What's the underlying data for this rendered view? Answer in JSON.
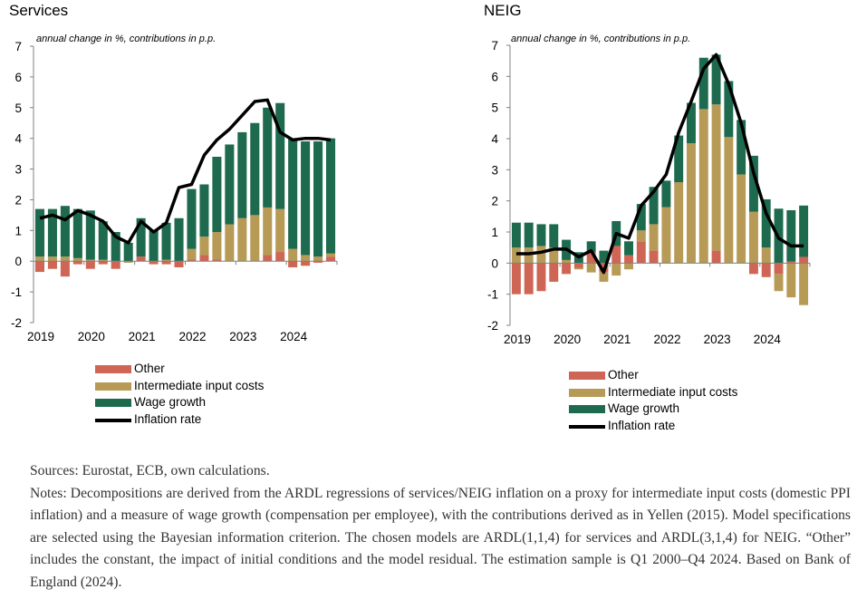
{
  "colors": {
    "other": "#cf6655",
    "intermediate": "#b69a56",
    "wage": "#1d6a4f",
    "inflation": "#000000"
  },
  "legend": {
    "other": "Other",
    "intermediate": "Intermediate input costs",
    "wage": "Wage growth",
    "inflation": "Inflation rate"
  },
  "chart_data": [
    {
      "type": "bar",
      "title": "Services",
      "subtitle": "annual change in %, contributions in p.p.",
      "stacked": true,
      "ylim": [
        -2,
        7
      ],
      "yticks": [
        -2,
        -1,
        0,
        1,
        2,
        3,
        4,
        5,
        6,
        7
      ],
      "xticks": [
        "2019",
        "2020",
        "2021",
        "2022",
        "2023",
        "2024"
      ],
      "categories": [
        "2019Q1",
        "2019Q2",
        "2019Q3",
        "2019Q4",
        "2020Q1",
        "2020Q2",
        "2020Q3",
        "2020Q4",
        "2021Q1",
        "2021Q2",
        "2021Q3",
        "2021Q4",
        "2022Q1",
        "2022Q2",
        "2022Q3",
        "2022Q4",
        "2023Q1",
        "2023Q2",
        "2023Q3",
        "2023Q4",
        "2024Q1",
        "2024Q2",
        "2024Q3",
        "2024Q4"
      ],
      "series": [
        {
          "name": "Other",
          "values": [
            -0.35,
            -0.25,
            -0.5,
            -0.1,
            -0.25,
            -0.1,
            -0.25,
            0.0,
            0.15,
            -0.1,
            -0.1,
            -0.2,
            0.05,
            0.2,
            0.05,
            0.0,
            0.0,
            0.0,
            0.2,
            0.3,
            -0.2,
            -0.15,
            -0.05,
            0.15
          ]
        },
        {
          "name": "Intermediate input costs",
          "values": [
            0.15,
            0.15,
            0.15,
            0.1,
            0.05,
            0.05,
            0.0,
            -0.05,
            0.0,
            0.0,
            0.05,
            0.0,
            0.35,
            0.6,
            0.9,
            1.2,
            1.4,
            1.5,
            1.55,
            1.4,
            0.4,
            0.2,
            0.15,
            0.1
          ]
        },
        {
          "name": "Wage growth",
          "values": [
            1.55,
            1.55,
            1.65,
            1.6,
            1.6,
            1.25,
            0.95,
            0.6,
            1.25,
            1.0,
            1.2,
            1.4,
            1.95,
            1.7,
            2.45,
            2.6,
            2.8,
            3.0,
            3.25,
            3.45,
            3.6,
            3.7,
            3.75,
            3.75
          ]
        },
        {
          "name": "Inflation rate",
          "type": "line",
          "values": [
            1.4,
            1.5,
            1.35,
            1.65,
            1.5,
            1.3,
            0.8,
            0.6,
            1.3,
            0.95,
            1.25,
            2.4,
            2.5,
            3.45,
            3.95,
            4.3,
            4.75,
            5.2,
            5.25,
            4.2,
            3.95,
            4.0,
            4.0,
            3.95
          ]
        }
      ]
    },
    {
      "type": "bar",
      "title": "NEIG",
      "subtitle": "annual change in %, contributions in p.p.",
      "stacked": true,
      "ylim": [
        -2,
        7
      ],
      "yticks": [
        -2,
        -1,
        0,
        1,
        2,
        3,
        4,
        5,
        6,
        7
      ],
      "xticks": [
        "2019",
        "2020",
        "2021",
        "2022",
        "2023",
        "2024"
      ],
      "categories": [
        "2019Q1",
        "2019Q2",
        "2019Q3",
        "2019Q4",
        "2020Q1",
        "2020Q2",
        "2020Q3",
        "2020Q4",
        "2021Q1",
        "2021Q2",
        "2021Q3",
        "2021Q4",
        "2022Q1",
        "2022Q2",
        "2022Q3",
        "2022Q4",
        "2023Q1",
        "2023Q2",
        "2023Q3",
        "2023Q4",
        "2024Q1",
        "2024Q2",
        "2024Q3",
        "2024Q4"
      ],
      "series": [
        {
          "name": "Other",
          "values": [
            -1.0,
            -1.0,
            -0.9,
            -0.6,
            -0.35,
            -0.15,
            0.35,
            -0.3,
            0.55,
            0.25,
            0.7,
            0.4,
            0.0,
            0.0,
            0.0,
            0.0,
            0.4,
            0.0,
            0.0,
            -0.35,
            -0.45,
            -0.35,
            0.05,
            0.2
          ]
        },
        {
          "name": "Intermediate input costs",
          "values": [
            0.5,
            0.5,
            0.55,
            0.5,
            0.1,
            -0.05,
            -0.3,
            -0.3,
            -0.4,
            -0.2,
            0.35,
            0.85,
            1.8,
            2.6,
            3.85,
            4.95,
            4.7,
            4.05,
            2.85,
            1.65,
            0.5,
            -0.55,
            -1.1,
            -1.35
          ]
        },
        {
          "name": "Wage growth",
          "values": [
            0.8,
            0.8,
            0.7,
            0.75,
            0.65,
            0.35,
            0.35,
            0.4,
            0.8,
            0.45,
            0.85,
            1.2,
            0.85,
            1.5,
            1.3,
            1.65,
            1.6,
            1.8,
            1.75,
            1.8,
            1.55,
            1.75,
            1.65,
            1.65
          ]
        },
        {
          "name": "Inflation rate",
          "type": "line",
          "values": [
            0.3,
            0.3,
            0.35,
            0.45,
            0.45,
            0.2,
            0.4,
            -0.3,
            0.95,
            0.8,
            1.85,
            2.3,
            2.85,
            4.2,
            5.2,
            6.25,
            6.7,
            5.75,
            4.5,
            2.9,
            1.6,
            0.8,
            0.55,
            0.55
          ]
        }
      ]
    }
  ],
  "notes": {
    "sources": "Sources: Eurostat, ECB, own calculations.",
    "text": "Notes: Decompositions are derived from the ARDL regressions of services/NEIG inflation on a proxy for intermediate input costs (domestic PPI inflation) and a measure of wage growth (compensation per employee), with the contributions derived as in Yellen (2015). Model specifications are selected using the Bayesian information criterion. The chosen models are ARDL(1,1,4) for services and ARDL(3,1,4) for NEIG. “Other” includes the constant, the impact of initial conditions and the model residual. The estimation sample is Q1 2000–Q4 2024. Based on Bank of England (2024)."
  }
}
